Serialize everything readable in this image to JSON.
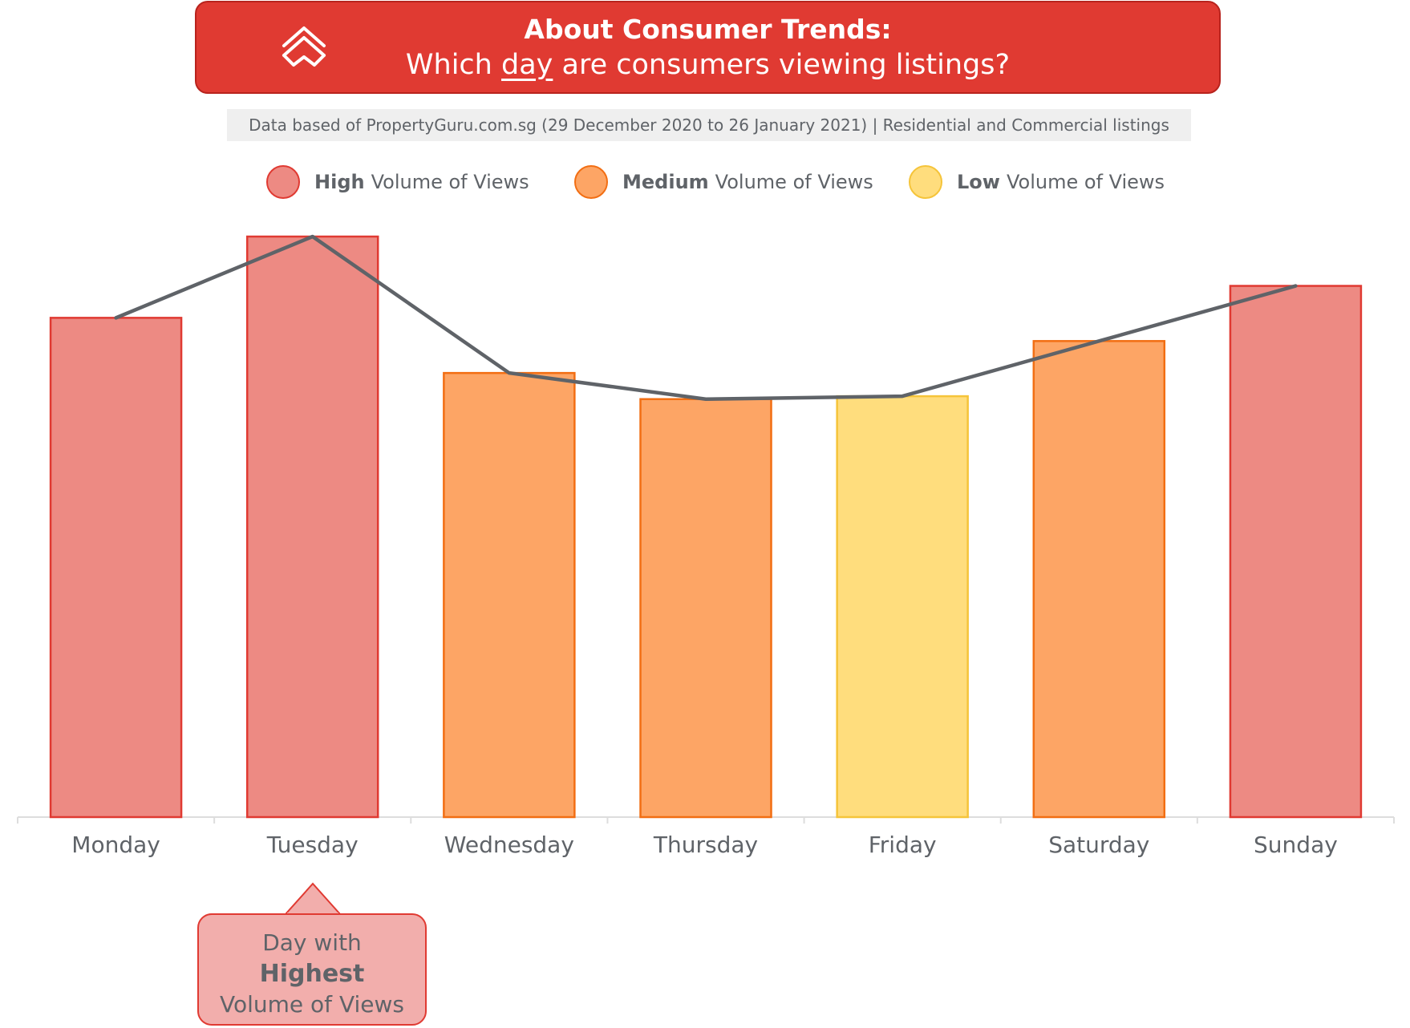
{
  "header": {
    "title": "About Consumer Trends:",
    "subtitle_pre": "Which ",
    "subtitle_underlined": "day",
    "subtitle_post": " are consumers viewing listings?",
    "logo_icon": "propertyguru-logo-icon"
  },
  "source_note": "Data based of PropertyGuru.com.sg (29 December 2020 to 26 January 2021) | Residential and Commercial listings",
  "legend": [
    {
      "bold": "High",
      "rest": "Volume of Views",
      "fill": "#ed8a83",
      "stroke": "#e03a32"
    },
    {
      "bold": "Medium",
      "rest": "Volume of Views",
      "fill": "#fda565",
      "stroke": "#f26e13"
    },
    {
      "bold": "Low",
      "rest": "Volume of Views",
      "fill": "#ffdd7d",
      "stroke": "#f5c43a"
    }
  ],
  "callout": {
    "line1": "Day with",
    "line2": "Highest",
    "line3": "Volume of Views"
  },
  "chart_data": {
    "type": "bar",
    "categories": [
      "Monday",
      "Tuesday",
      "Wednesday",
      "Thursday",
      "Friday",
      "Saturday",
      "Sunday"
    ],
    "values": [
      86,
      100,
      76.5,
      72,
      72.5,
      82,
      91.5
    ],
    "levels": [
      "High",
      "High",
      "Medium",
      "Medium",
      "Low",
      "Medium",
      "High"
    ],
    "line_values": [
      86,
      100,
      76.5,
      72,
      72.5,
      82,
      91.5
    ],
    "ylim": [
      0,
      100
    ],
    "title": "",
    "xlabel": "",
    "ylabel": "",
    "grid": false,
    "legend_position": "top",
    "colors": {
      "High": {
        "fill": "#ed8a83",
        "stroke": "#e03a32"
      },
      "Medium": {
        "fill": "#fda565",
        "stroke": "#f26e13"
      },
      "Low": {
        "fill": "#ffdd7d",
        "stroke": "#f5c43a"
      },
      "line": "#5f6368",
      "axis": "#dddddd"
    }
  }
}
